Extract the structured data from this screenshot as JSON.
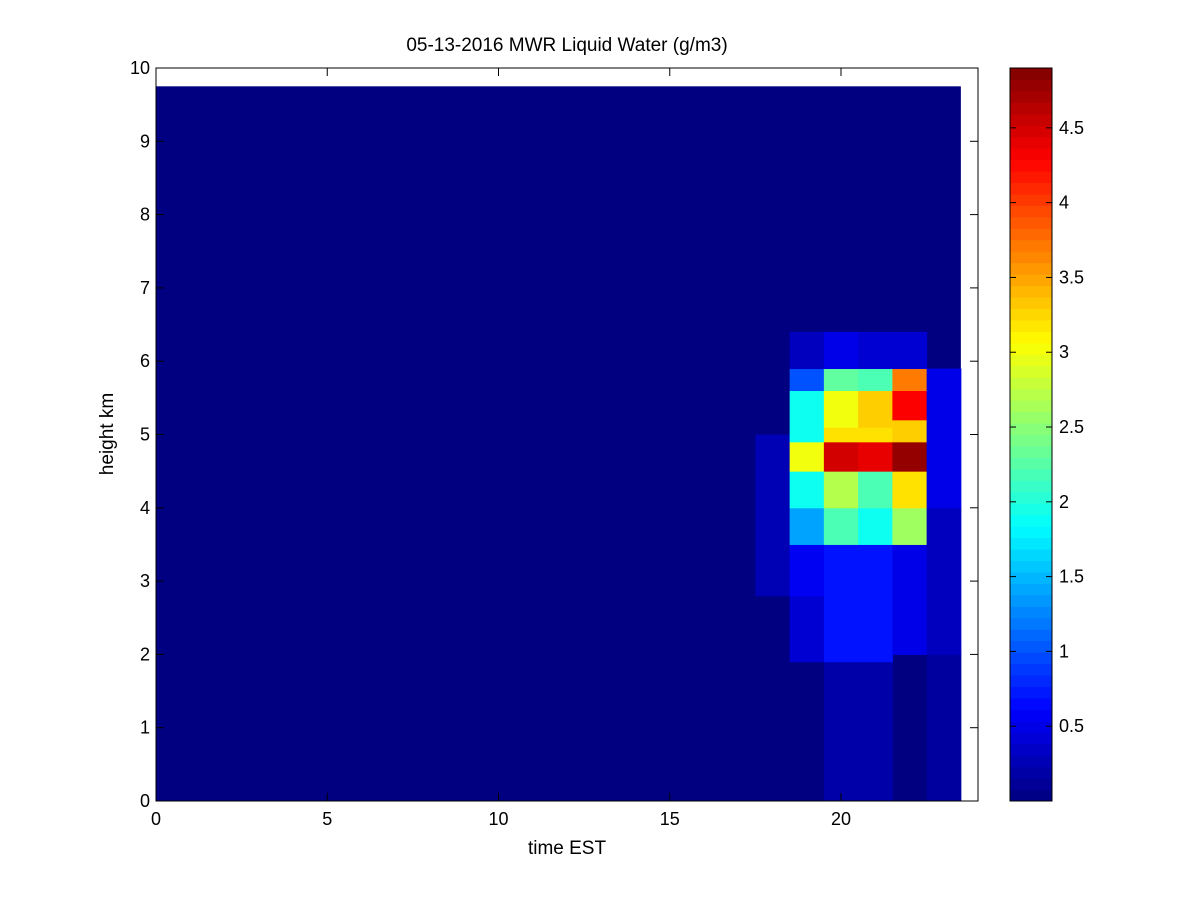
{
  "chart_data": {
    "type": "heatmap",
    "title": "05-13-2016 MWR Liquid Water (g/m3)",
    "xlabel": "time EST",
    "ylabel": "height km",
    "xlim": [
      0,
      24
    ],
    "ylim": [
      0,
      10
    ],
    "x_ticks": [
      "0",
      "5",
      "10",
      "15",
      "20"
    ],
    "y_ticks": [
      "0",
      "1",
      "2",
      "3",
      "4",
      "5",
      "6",
      "7",
      "8",
      "9",
      "10"
    ],
    "grid": false,
    "colormap": "jet",
    "colorbar": {
      "range": [
        0.0,
        4.9
      ],
      "ticks": [
        "0.5",
        "1",
        "1.5",
        "2",
        "2.5",
        "3",
        "3.5",
        "4",
        "4.5"
      ]
    },
    "background_value": 0.0,
    "data_extent": {
      "x": [
        0,
        23.5
      ],
      "y": [
        0,
        9.75
      ]
    },
    "columns": [
      {
        "x0": 17.5,
        "x1": 18.5,
        "cells": [
          [
            2.8,
            5.0,
            0.25
          ]
        ]
      },
      {
        "x0": 18.5,
        "x1": 19.5,
        "cells": [
          [
            1.9,
            2.8,
            0.4
          ],
          [
            2.8,
            3.5,
            0.55
          ],
          [
            3.5,
            4.0,
            1.4
          ],
          [
            4.0,
            4.5,
            1.9
          ],
          [
            4.5,
            4.9,
            3.0
          ],
          [
            4.9,
            5.6,
            1.9
          ],
          [
            5.6,
            5.9,
            1.0
          ],
          [
            5.9,
            6.4,
            0.3
          ]
        ]
      },
      {
        "x0": 19.5,
        "x1": 20.5,
        "cells": [
          [
            0.0,
            1.9,
            0.2
          ],
          [
            1.9,
            3.5,
            0.7
          ],
          [
            3.5,
            4.0,
            2.2
          ],
          [
            4.0,
            4.5,
            2.7
          ],
          [
            4.5,
            4.9,
            4.5
          ],
          [
            4.9,
            5.1,
            3.2
          ],
          [
            5.1,
            5.6,
            3.0
          ],
          [
            5.6,
            5.9,
            2.3
          ],
          [
            5.9,
            6.4,
            0.5
          ]
        ]
      },
      {
        "x0": 20.5,
        "x1": 21.5,
        "cells": [
          [
            0.0,
            1.9,
            0.2
          ],
          [
            1.9,
            3.5,
            0.7
          ],
          [
            3.5,
            4.0,
            1.9
          ],
          [
            4.0,
            4.5,
            2.2
          ],
          [
            4.5,
            4.9,
            4.4
          ],
          [
            4.9,
            5.1,
            3.2
          ],
          [
            5.1,
            5.6,
            3.3
          ],
          [
            5.6,
            5.9,
            2.2
          ],
          [
            5.9,
            6.4,
            0.4
          ]
        ]
      },
      {
        "x0": 21.5,
        "x1": 22.5,
        "cells": [
          [
            2.0,
            3.5,
            0.5
          ],
          [
            3.5,
            4.0,
            2.6
          ],
          [
            4.0,
            4.5,
            3.2
          ],
          [
            4.5,
            4.9,
            4.8
          ],
          [
            4.9,
            5.2,
            3.3
          ],
          [
            5.2,
            5.6,
            4.3
          ],
          [
            5.6,
            5.9,
            3.7
          ],
          [
            5.9,
            6.4,
            0.4
          ]
        ]
      },
      {
        "x0": 22.5,
        "x1": 23.5,
        "cells": [
          [
            0.0,
            2.0,
            0.15
          ],
          [
            2.0,
            4.0,
            0.3
          ],
          [
            4.0,
            5.9,
            0.5
          ]
        ]
      }
    ]
  }
}
